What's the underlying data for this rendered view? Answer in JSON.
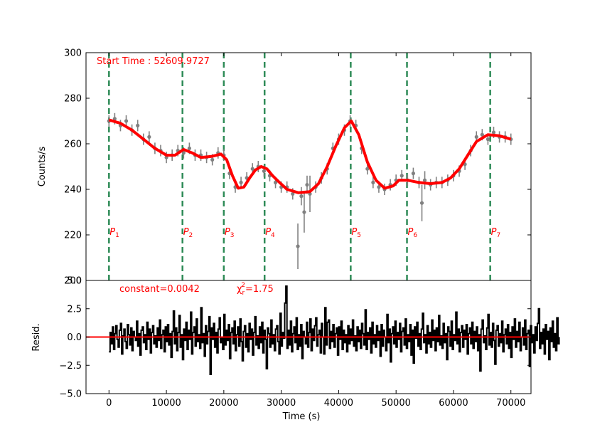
{
  "chart_data": [
    {
      "type": "line",
      "panel": "top",
      "ylabel": "Counts/s",
      "xlabel": "",
      "xlim": [
        -4000,
        73500
      ],
      "ylim": [
        200,
        300
      ],
      "yticks": [
        200,
        220,
        240,
        260,
        280,
        300
      ],
      "annotation_start_time": "Start Time : 52609.9727",
      "model_color": "#ff0000",
      "data_color": "#808080",
      "marker_color": "#2e8b57",
      "model": {
        "x": [
          0,
          2000,
          4000,
          6000,
          8000,
          10000,
          11500,
          13000,
          14500,
          16000,
          18000,
          19500,
          20500,
          21500,
          22500,
          23500,
          24500,
          25500,
          26500,
          27500,
          28500,
          29500,
          31000,
          33000,
          35000,
          36500,
          38000,
          39500,
          41000,
          42200,
          43500,
          45000,
          46500,
          48000,
          49500,
          50500,
          52000,
          54000,
          56000,
          58000,
          59500,
          61000,
          62500,
          64000,
          66000,
          68000,
          70000
        ],
        "y": [
          270.5,
          269,
          266,
          262,
          258,
          255,
          255,
          257.5,
          256,
          254,
          254.5,
          255.5,
          253,
          246,
          240.5,
          241,
          245,
          248.5,
          250,
          249,
          246,
          243.5,
          240,
          238.5,
          239,
          242.5,
          250,
          259,
          267,
          270,
          264,
          252,
          244,
          240.5,
          241.5,
          244,
          244,
          243,
          242.5,
          243,
          245,
          249,
          255,
          261,
          264,
          263.5,
          262
        ]
      },
      "data": {
        "x": [
          0,
          1000,
          2000,
          3000,
          4000,
          5000,
          6000,
          7000,
          8000,
          9000,
          10000,
          11000,
          12000,
          13000,
          14000,
          15000,
          16000,
          17000,
          18000,
          19000,
          20000,
          21000,
          22000,
          23000,
          24000,
          25000,
          26000,
          27000,
          28000,
          29000,
          30000,
          31000,
          32000,
          32900,
          33500,
          34000,
          34500,
          35000,
          36000,
          37000,
          38000,
          39000,
          40000,
          41000,
          42000,
          43000,
          44000,
          45000,
          46000,
          47000,
          48000,
          49000,
          50000,
          51000,
          52000,
          53000,
          54000,
          54500,
          55000,
          56000,
          57000,
          58000,
          59000,
          60000,
          61000,
          62000,
          63000,
          64000,
          65000,
          66000,
          67000,
          68000,
          69000,
          70000
        ],
        "y": [
          270,
          271,
          268,
          270,
          266,
          268,
          262,
          263,
          258,
          257,
          254,
          255,
          257,
          256,
          258,
          255,
          255,
          254,
          253,
          256,
          255,
          247,
          241,
          243,
          245,
          249,
          250,
          248,
          246,
          243,
          241,
          241,
          238,
          215,
          237,
          230,
          242,
          238,
          241,
          245,
          249,
          258,
          262,
          266,
          270,
          268,
          258,
          249,
          243,
          241,
          240,
          242,
          244,
          246,
          244,
          247,
          243,
          234,
          244,
          242,
          243,
          243,
          244,
          246,
          248,
          251,
          257,
          263,
          264,
          262,
          265,
          263,
          263,
          262
        ],
        "err": [
          2.5,
          2.5,
          2.5,
          2.5,
          2.5,
          2.5,
          2.5,
          2.5,
          2.5,
          2.5,
          2.5,
          2.5,
          2.5,
          2.5,
          2.5,
          2.5,
          2.5,
          2.5,
          2.5,
          2.5,
          2.5,
          2.5,
          2.5,
          2.5,
          2.5,
          2.5,
          2.5,
          2.5,
          2.5,
          2.5,
          2.5,
          2.5,
          2.5,
          10,
          4,
          9,
          4,
          8,
          2.5,
          2.5,
          2.5,
          2.5,
          2.5,
          2.5,
          2.5,
          2.5,
          2.5,
          2.5,
          2.5,
          2.5,
          2.5,
          2.5,
          2.5,
          2.5,
          2.5,
          2.5,
          2.5,
          8,
          4,
          2.5,
          2.5,
          2.5,
          2.5,
          2.5,
          2.5,
          2.5,
          2.5,
          2.5,
          2.5,
          2.5,
          2.5,
          2.5,
          2.5,
          2.5
        ]
      },
      "markers": [
        {
          "x": 0,
          "sub": "1"
        },
        {
          "x": 12800,
          "sub": "2"
        },
        {
          "x": 20000,
          "sub": "3"
        },
        {
          "x": 27100,
          "sub": "4"
        },
        {
          "x": 42100,
          "sub": "5"
        },
        {
          "x": 51900,
          "sub": "6"
        },
        {
          "x": 66400,
          "sub": "7"
        }
      ],
      "marker_label_main": "P"
    },
    {
      "type": "line",
      "panel": "bottom",
      "xlabel": "Time (s)",
      "ylabel": "Resid.",
      "xlim": [
        -4000,
        73500
      ],
      "ylim": [
        -5.0,
        5.0
      ],
      "xticks": [
        0,
        10000,
        20000,
        30000,
        40000,
        50000,
        60000,
        70000
      ],
      "yticks": [
        -5.0,
        -2.5,
        0.0,
        2.5,
        5.0
      ],
      "ytick_labels": [
        "−5.0",
        "−2.5",
        "0.0",
        "2.5",
        "5.0"
      ],
      "annotation_constant": "constant=0.0042",
      "annotation_chi_main": "χ",
      "annotation_chi_sub": "r",
      "annotation_chi_sup": "2",
      "annotation_chi_value": "=1.75",
      "zero_line_color": "#ff0000",
      "series_color": "#000000",
      "residuals": {
        "x0": 0,
        "dx": 200,
        "values": [
          -1.3,
          0.4,
          -0.6,
          0.9,
          -1.1,
          0.3,
          1.0,
          -0.2,
          -0.9,
          0.6,
          1.2,
          -1.5,
          0.1,
          0.7,
          -0.4,
          -1.0,
          1.1,
          0.2,
          -0.7,
          0.8,
          -1.2,
          0.5,
          0.0,
          -0.3,
          1.4,
          -0.8,
          0.3,
          -1.6,
          0.6,
          0.9,
          -0.5,
          0.2,
          -1.1,
          1.3,
          -0.2,
          0.7,
          -1.4,
          0.4,
          1.0,
          -0.6,
          0.1,
          -0.9,
          0.8,
          -0.3,
          1.5,
          -1.0,
          0.2,
          0.6,
          -1.3,
          0.9,
          -0.4,
          1.1,
          -0.7,
          0.3,
          -1.8,
          0.5,
          2.3,
          -0.6,
          0.8,
          -1.2,
          0.4,
          1.9,
          -0.9,
          0.2,
          -2.0,
          0.7,
          -0.3,
          1.3,
          -1.1,
          0.6,
          -0.2,
          2.2,
          -1.5,
          0.4,
          0.9,
          -0.8,
          1.6,
          -0.4,
          0.2,
          -1.0,
          2.6,
          -0.5,
          0.3,
          -1.7,
          1.0,
          -0.6,
          0.5,
          1.8,
          -3.3,
          0.8,
          -0.2,
          1.2,
          -0.9,
          0.4,
          -1.4,
          0.7,
          1.7,
          -0.5,
          0.0,
          -1.1,
          2.0,
          -0.7,
          0.6,
          -0.3,
          1.1,
          -1.9,
          0.4,
          0.8,
          -0.6,
          1.4,
          -1.2,
          0.2,
          0.9,
          -0.8,
          1.6,
          -0.4,
          -2.1,
          0.5,
          1.0,
          -0.9,
          0.3,
          -1.3,
          1.2,
          -0.2,
          0.7,
          -1.6,
          0.4,
          1.8,
          -0.7,
          0.1,
          -1.0,
          0.9,
          -0.5,
          1.3,
          -1.4,
          0.6,
          -0.2,
          -2.8,
          0.8,
          0.3,
          -0.9,
          1.5,
          -0.6,
          0.2,
          -1.2,
          0.7,
          1.0,
          -0.4,
          -1.5,
          2.1,
          -0.8,
          0.4,
          -0.1,
          3.0,
          4.5,
          -1.0,
          0.6,
          -0.7,
          1.4,
          -1.3,
          0.3,
          0.9,
          -0.5,
          1.7,
          -1.1,
          0.2,
          -0.8,
          1.1,
          -1.9,
          0.5,
          0.0,
          -0.6,
          1.3,
          -0.9,
          0.4,
          1.6,
          -1.2,
          0.7,
          -0.3,
          1.0,
          1.7,
          -0.8,
          0.2,
          0.6,
          -1.4,
          1.2,
          0.0,
          -1.5,
          2.6,
          -0.7,
          1.3,
          1.5,
          -1.0,
          0.5,
          -0.4,
          1.1,
          -0.9,
          0.3,
          0.8,
          -1.6,
          0.9,
          -0.2,
          1.4,
          -1.1,
          0.6,
          -0.5,
          0.2,
          -1.3,
          1.0,
          -0.6,
          0.7,
          -0.3,
          1.5,
          -0.8,
          0.1,
          -1.2,
          0.9,
          -0.4,
          0.6,
          -1.0,
          1.2,
          0.3,
          -0.7,
          2.4,
          -1.1,
          0.4,
          -0.2,
          0.8,
          -1.4,
          1.3,
          -0.6,
          0.2,
          -0.9,
          1.0,
          -0.3,
          0.5,
          -1.7,
          1.1,
          -0.8,
          0.6,
          0.0,
          -1.2,
          2.0,
          -0.5,
          0.7,
          -2.2,
          0.3,
          0.9,
          -0.6,
          1.4,
          -0.9,
          0.4,
          -0.2,
          1.2,
          -1.3,
          0.5,
          0.8,
          -0.7,
          1.6,
          -1.0,
          0.2,
          -0.4,
          1.1,
          -1.6,
          0.6,
          -2.3,
          0.9,
          -0.1,
          1.3,
          -0.8,
          0.3,
          -1.1,
          0.7,
          2.1,
          -0.5,
          0.2,
          -1.4,
          1.0,
          -0.6,
          0.4,
          -0.9,
          1.5,
          -0.3,
          0.6,
          -1.2,
          0.8,
          -0.4,
          1.9,
          -0.7,
          0.1,
          -1.0,
          1.2,
          -0.5,
          0.3,
          -2.0,
          0.9,
          0.5,
          -0.8,
          1.4,
          -1.1,
          0.2,
          -0.3,
          2.2,
          -0.6,
          0.7,
          -1.3,
          0.4,
          1.0,
          -0.9,
          0.6,
          -0.2,
          1.1,
          -1.5,
          0.3,
          0.8,
          -0.6,
          1.3,
          -1.0,
          0.5,
          -0.4,
          0.9,
          -1.2,
          0.2,
          -3.0,
          0.7,
          1.5,
          -0.5,
          0.1,
          -1.1,
          0.8,
          2.0,
          -0.7,
          0.4,
          -0.9,
          1.2,
          -0.3,
          -2.4,
          0.6,
          1.0,
          -0.8,
          0.3,
          -0.5,
          1.4,
          -1.3,
          0.2,
          0.7,
          -0.6,
          1.1,
          -1.0,
          0.4,
          -1.8,
          0.9,
          -0.2,
          1.6,
          -0.9,
          0.5,
          -0.4,
          1.3,
          -1.2,
          0.0,
          0.8,
          -0.7,
          1.5,
          -1.1,
          0.3,
          0.6,
          -2.6,
          1.0,
          -0.5,
          0.2,
          -1.4,
          0.9,
          -0.3,
          1.2,
          2.5,
          -1.0,
          0.4,
          -0.6,
          0.7,
          -1.5,
          1.1,
          -0.2,
          0.5,
          -2.0,
          0.8,
          -0.4,
          1.4,
          -0.9,
          0.3,
          -1.2,
          1.7,
          -0.6,
          0.0
        ]
      }
    }
  ]
}
